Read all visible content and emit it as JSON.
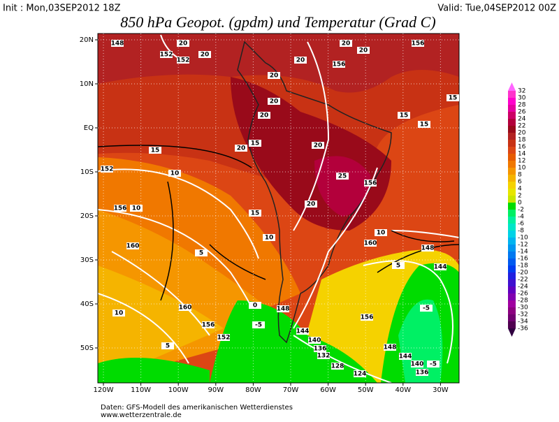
{
  "header": {
    "init": "Init : Mon,03SEP2012 18Z",
    "valid": "Valid: Tue,04SEP2012 00Z",
    "title": "850 hPa Geopot. (gpdm) und Temperatur (Grad C)"
  },
  "map": {
    "lon_labels": [
      "120W",
      "110W",
      "100W",
      "90W",
      "80W",
      "70W",
      "60W",
      "50W",
      "40W",
      "30W"
    ],
    "lat_labels": [
      "20N",
      "10N",
      "EQ",
      "10S",
      "20S",
      "30S",
      "40S",
      "50S"
    ],
    "contour_labels": [
      "148",
      "20",
      "152",
      "20",
      "152",
      "20",
      "20",
      "156",
      "20",
      "20",
      "156",
      "20",
      "20",
      "15",
      "15",
      "15",
      "15",
      "15",
      "20",
      "20",
      "152",
      "10",
      "25",
      "156",
      "10",
      "156",
      "15",
      "20",
      "10",
      "160",
      "5",
      "160",
      "10",
      "5",
      "148",
      "144",
      "160",
      "156",
      "152",
      "0",
      "-5",
      "148",
      "144",
      "140",
      "136",
      "132",
      "156",
      "128",
      "124",
      "148",
      "144",
      "140",
      "136",
      "-5",
      "-5",
      "10",
      "5"
    ]
  },
  "colorbar": {
    "labels": [
      "32",
      "30",
      "28",
      "26",
      "24",
      "22",
      "20",
      "18",
      "16",
      "14",
      "12",
      "10",
      "8",
      "6",
      "4",
      "2",
      "0",
      "-2",
      "-4",
      "-6",
      "-8",
      "-10",
      "-12",
      "-14",
      "-16",
      "-18",
      "-20",
      "-22",
      "-24",
      "-26",
      "-28",
      "-30",
      "-32",
      "-34",
      "-36"
    ],
    "colors": [
      "#ff66ff",
      "#ff33cc",
      "#ff00cc",
      "#e600a0",
      "#cc0066",
      "#b3003b",
      "#990a1a",
      "#b22222",
      "#c83214",
      "#dc4614",
      "#e65a00",
      "#f07800",
      "#f59600",
      "#f5b400",
      "#f5d200",
      "#e6e600",
      "#c8e600",
      "#00dc00",
      "#00f064",
      "#00f0a0",
      "#00e6c8",
      "#00d2e6",
      "#00b4f0",
      "#0096f0",
      "#0078f0",
      "#005af0",
      "#003cf0",
      "#2020e0",
      "#4010d0",
      "#6000c0",
      "#8000b0",
      "#a000a0",
      "#8c0080",
      "#700070",
      "#500050",
      "#300040"
    ]
  },
  "footer": {
    "source": "Daten: GFS-Modell des amerikanischen Wetterdienstes",
    "site": "www.wetterzentrale.de"
  }
}
